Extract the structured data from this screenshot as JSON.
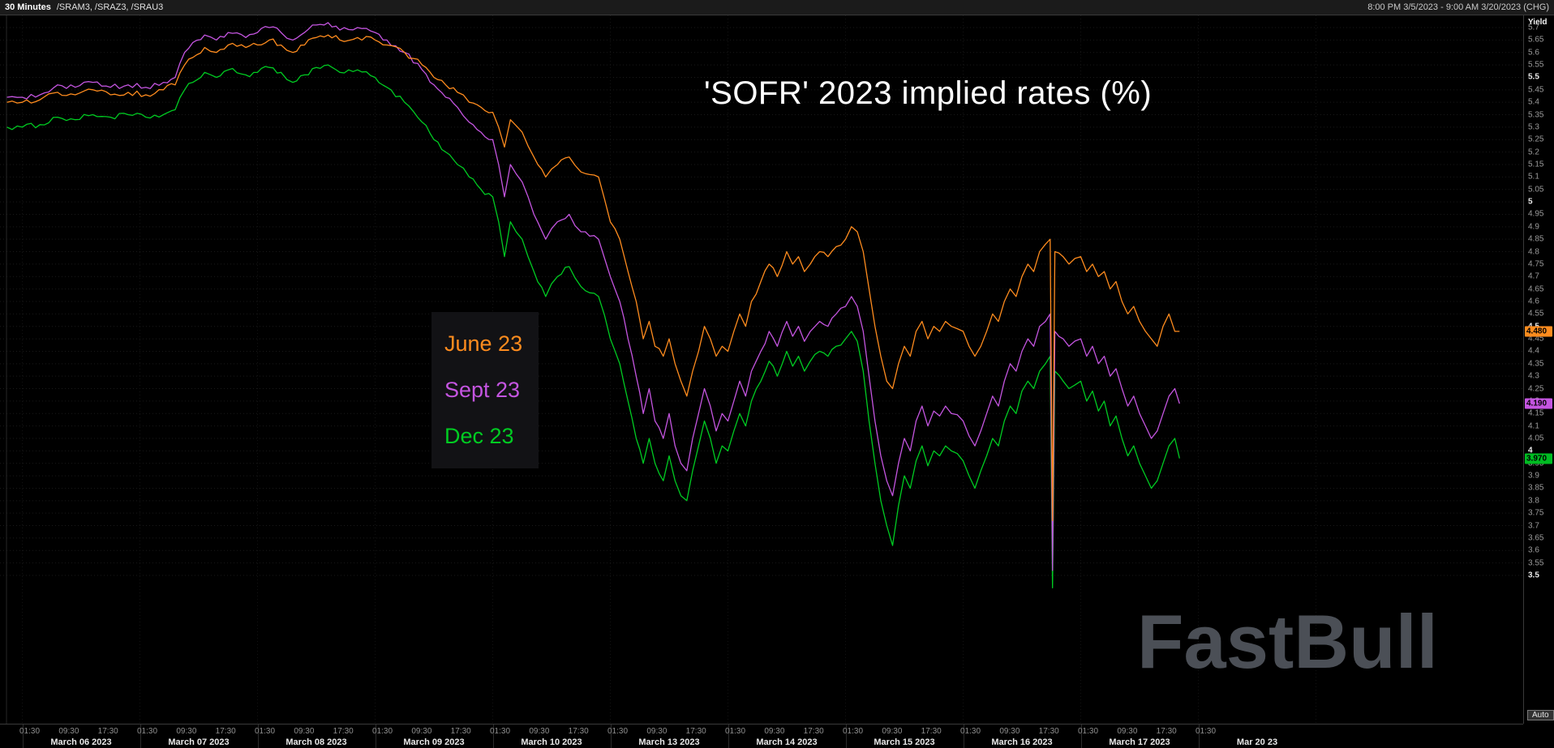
{
  "header": {
    "timeframe": "30 Minutes",
    "symbols": "/SRAM3, /SRAZ3, /SRAU3",
    "range": "8:00 PM 3/5/2023 - 9:00 AM 3/20/2023 (CHG)"
  },
  "title": "'SOFR' 2023 implied rates (%)",
  "watermark": "FastBull",
  "axis": {
    "yield_label": "Yield",
    "auto_label": "Auto",
    "y_max": 5.7,
    "y_min": 3.5,
    "tick_step": 0.05
  },
  "legend": [
    {
      "label": "June 23",
      "color": "#ff8c1e"
    },
    {
      "label": "Sept 23",
      "color": "#c455e0"
    },
    {
      "label": "Dec 23",
      "color": "#00cc22"
    }
  ],
  "price_tags": [
    {
      "label": "4.480",
      "value": 4.48,
      "color": "#ff8c1e"
    },
    {
      "label": "4.190",
      "value": 4.19,
      "color": "#c455e0"
    },
    {
      "label": "3.970",
      "value": 3.97,
      "color": "#00bb22"
    }
  ],
  "x_axis": {
    "days": [
      {
        "date": "March 06 2023",
        "times": [
          "01:30",
          "09:30",
          "17:30"
        ]
      },
      {
        "date": "March 07 2023",
        "times": [
          "01:30",
          "09:30",
          "17:30"
        ]
      },
      {
        "date": "March 08 2023",
        "times": [
          "01:30",
          "09:30",
          "17:30"
        ]
      },
      {
        "date": "March 09 2023",
        "times": [
          "01:30",
          "09:30",
          "17:30"
        ]
      },
      {
        "date": "March 10 2023",
        "times": [
          "01:30",
          "09:30",
          "17:30"
        ]
      },
      {
        "date": "March 13 2023",
        "times": [
          "01:30",
          "09:30",
          "17:30"
        ]
      },
      {
        "date": "March 14 2023",
        "times": [
          "01:30",
          "09:30",
          "17:30"
        ]
      },
      {
        "date": "March 15 2023",
        "times": [
          "01:30",
          "09:30",
          "17:30"
        ]
      },
      {
        "date": "March 16 2023",
        "times": [
          "01:30",
          "09:30",
          "17:30"
        ]
      },
      {
        "date": "March 17 2023",
        "times": [
          "01:30",
          "09:30",
          "17:30"
        ]
      },
      {
        "date": "Mar 20 23",
        "times": [
          "01:30"
        ]
      }
    ]
  },
  "chart_data": {
    "type": "line",
    "title": "'SOFR' 2023 implied rates (%)",
    "ylabel": "Yield",
    "ylim": [
      3.5,
      5.7
    ],
    "grid": "faint dotted horizontal",
    "legend_position": "floating box left-center",
    "x_unit": "trading-day index (30-minute bars), 0 = March 06 2023, weekend skipped",
    "x": [
      -0.13,
      0,
      0.15,
      0.3,
      0.45,
      0.6,
      0.75,
      0.9,
      1.05,
      1.2,
      1.3,
      1.38,
      1.45,
      1.55,
      1.65,
      1.75,
      1.9,
      2,
      2.1,
      2.2,
      2.3,
      2.4,
      2.5,
      2.6,
      2.7,
      2.85,
      3,
      3.1,
      3.25,
      3.4,
      3.5,
      3.6,
      3.7,
      3.8,
      3.9,
      4,
      4.05,
      4.1,
      4.15,
      4.25,
      4.35,
      4.45,
      4.55,
      4.65,
      4.75,
      4.9,
      5,
      5.08,
      5.15,
      5.22,
      5.28,
      5.33,
      5.38,
      5.45,
      5.5,
      5.55,
      5.6,
      5.65,
      5.7,
      5.75,
      5.8,
      5.85,
      5.9,
      5.95,
      6,
      6.05,
      6.1,
      6.15,
      6.2,
      6.28,
      6.35,
      6.42,
      6.5,
      6.55,
      6.6,
      6.65,
      6.7,
      6.78,
      6.85,
      6.92,
      7,
      7.05,
      7.1,
      7.15,
      7.2,
      7.25,
      7.3,
      7.35,
      7.4,
      7.45,
      7.5,
      7.55,
      7.6,
      7.65,
      7.7,
      7.75,
      7.8,
      7.85,
      7.9,
      8,
      8.05,
      8.1,
      8.15,
      8.2,
      8.25,
      8.3,
      8.35,
      8.4,
      8.45,
      8.5,
      8.55,
      8.6,
      8.65,
      8.7,
      8.74,
      8.76,
      8.78,
      8.85,
      8.9,
      9,
      9.05,
      9.1,
      9.15,
      9.2,
      9.25,
      9.3,
      9.35,
      9.4,
      9.45,
      9.5,
      9.55,
      9.6,
      9.65,
      9.7,
      9.75,
      9.8,
      9.84
    ],
    "series": [
      {
        "name": "June 23",
        "symbol": "/SRAM3",
        "color": "#ff8c1e",
        "last": 4.48,
        "values": [
          5.4,
          5.4,
          5.41,
          5.44,
          5.43,
          5.45,
          5.43,
          5.44,
          5.43,
          5.45,
          5.47,
          5.55,
          5.58,
          5.62,
          5.6,
          5.63,
          5.62,
          5.63,
          5.65,
          5.63,
          5.6,
          5.63,
          5.66,
          5.67,
          5.65,
          5.66,
          5.65,
          5.63,
          5.6,
          5.55,
          5.5,
          5.47,
          5.44,
          5.4,
          5.38,
          5.36,
          5.3,
          5.22,
          5.33,
          5.28,
          5.18,
          5.1,
          5.15,
          5.18,
          5.12,
          5.1,
          4.92,
          4.85,
          4.72,
          4.6,
          4.45,
          4.52,
          4.42,
          4.38,
          4.45,
          4.35,
          4.28,
          4.22,
          4.32,
          4.4,
          4.5,
          4.45,
          4.38,
          4.42,
          4.4,
          4.48,
          4.55,
          4.5,
          4.6,
          4.68,
          4.75,
          4.7,
          4.8,
          4.75,
          4.78,
          4.72,
          4.75,
          4.8,
          4.78,
          4.82,
          4.85,
          4.9,
          4.88,
          4.8,
          4.65,
          4.5,
          4.38,
          4.28,
          4.25,
          4.35,
          4.42,
          4.38,
          4.48,
          4.52,
          4.45,
          4.5,
          4.48,
          4.52,
          4.5,
          4.48,
          4.42,
          4.38,
          4.42,
          4.48,
          4.55,
          4.52,
          4.6,
          4.65,
          4.62,
          4.7,
          4.75,
          4.72,
          4.8,
          4.83,
          4.85,
          3.72,
          4.8,
          4.78,
          4.75,
          4.78,
          4.72,
          4.75,
          4.7,
          4.72,
          4.65,
          4.68,
          4.6,
          4.55,
          4.58,
          4.52,
          4.48,
          4.45,
          4.42,
          4.5,
          4.55,
          4.48,
          4.48
        ]
      },
      {
        "name": "Sept 23",
        "symbol": "/SRAU3",
        "color": "#c455e0",
        "last": 4.19,
        "values": [
          5.42,
          5.42,
          5.43,
          5.47,
          5.46,
          5.48,
          5.46,
          5.47,
          5.46,
          5.48,
          5.5,
          5.6,
          5.64,
          5.67,
          5.65,
          5.68,
          5.66,
          5.68,
          5.7,
          5.68,
          5.65,
          5.68,
          5.71,
          5.72,
          5.69,
          5.7,
          5.68,
          5.65,
          5.6,
          5.53,
          5.47,
          5.42,
          5.38,
          5.32,
          5.28,
          5.25,
          5.15,
          5.02,
          5.15,
          5.08,
          4.95,
          4.85,
          4.92,
          4.95,
          4.88,
          4.85,
          4.7,
          4.6,
          4.45,
          4.3,
          4.15,
          4.25,
          4.12,
          4.05,
          4.15,
          4.02,
          3.95,
          3.92,
          4.05,
          4.15,
          4.25,
          4.18,
          4.08,
          4.15,
          4.12,
          4.2,
          4.28,
          4.22,
          4.32,
          4.4,
          4.48,
          4.42,
          4.52,
          4.46,
          4.5,
          4.44,
          4.48,
          4.52,
          4.5,
          4.55,
          4.58,
          4.62,
          4.58,
          4.48,
          4.3,
          4.12,
          3.98,
          3.88,
          3.82,
          3.95,
          4.05,
          4,
          4.12,
          4.18,
          4.1,
          4.16,
          4.14,
          4.18,
          4.15,
          4.12,
          4.06,
          4.02,
          4.08,
          4.15,
          4.22,
          4.18,
          4.28,
          4.35,
          4.32,
          4.4,
          4.45,
          4.42,
          4.5,
          4.52,
          4.55,
          3.52,
          4.48,
          4.45,
          4.42,
          4.45,
          4.38,
          4.42,
          4.35,
          4.38,
          4.3,
          4.33,
          4.25,
          4.18,
          4.22,
          4.15,
          4.1,
          4.05,
          4.08,
          4.15,
          4.22,
          4.25,
          4.19
        ]
      },
      {
        "name": "Dec 23",
        "symbol": "/SRAZ3",
        "color": "#00cc22",
        "last": 3.97,
        "values": [
          5.3,
          5.3,
          5.31,
          5.34,
          5.33,
          5.35,
          5.34,
          5.35,
          5.34,
          5.35,
          5.37,
          5.45,
          5.48,
          5.52,
          5.5,
          5.53,
          5.51,
          5.52,
          5.54,
          5.52,
          5.48,
          5.51,
          5.54,
          5.55,
          5.52,
          5.53,
          5.5,
          5.46,
          5.4,
          5.32,
          5.25,
          5.2,
          5.15,
          5.1,
          5.05,
          5.02,
          4.92,
          4.78,
          4.92,
          4.85,
          4.72,
          4.62,
          4.7,
          4.74,
          4.66,
          4.62,
          4.45,
          4.35,
          4.2,
          4.05,
          3.95,
          4.05,
          3.95,
          3.88,
          3.98,
          3.88,
          3.82,
          3.8,
          3.92,
          4.02,
          4.12,
          4.05,
          3.95,
          4.02,
          4,
          4.08,
          4.15,
          4.1,
          4.2,
          4.28,
          4.36,
          4.3,
          4.4,
          4.34,
          4.38,
          4.32,
          4.36,
          4.4,
          4.38,
          4.42,
          4.45,
          4.48,
          4.44,
          4.32,
          4.12,
          3.95,
          3.8,
          3.7,
          3.62,
          3.78,
          3.9,
          3.85,
          3.96,
          4.02,
          3.94,
          4,
          3.98,
          4.02,
          4,
          3.96,
          3.9,
          3.85,
          3.92,
          3.98,
          4.05,
          4.02,
          4.12,
          4.18,
          4.15,
          4.24,
          4.28,
          4.25,
          4.32,
          4.35,
          4.38,
          3.45,
          4.32,
          4.28,
          4.25,
          4.28,
          4.2,
          4.24,
          4.16,
          4.2,
          4.1,
          4.14,
          4.05,
          3.98,
          4.02,
          3.95,
          3.9,
          3.85,
          3.88,
          3.95,
          4.02,
          4.05,
          3.97
        ]
      }
    ]
  }
}
